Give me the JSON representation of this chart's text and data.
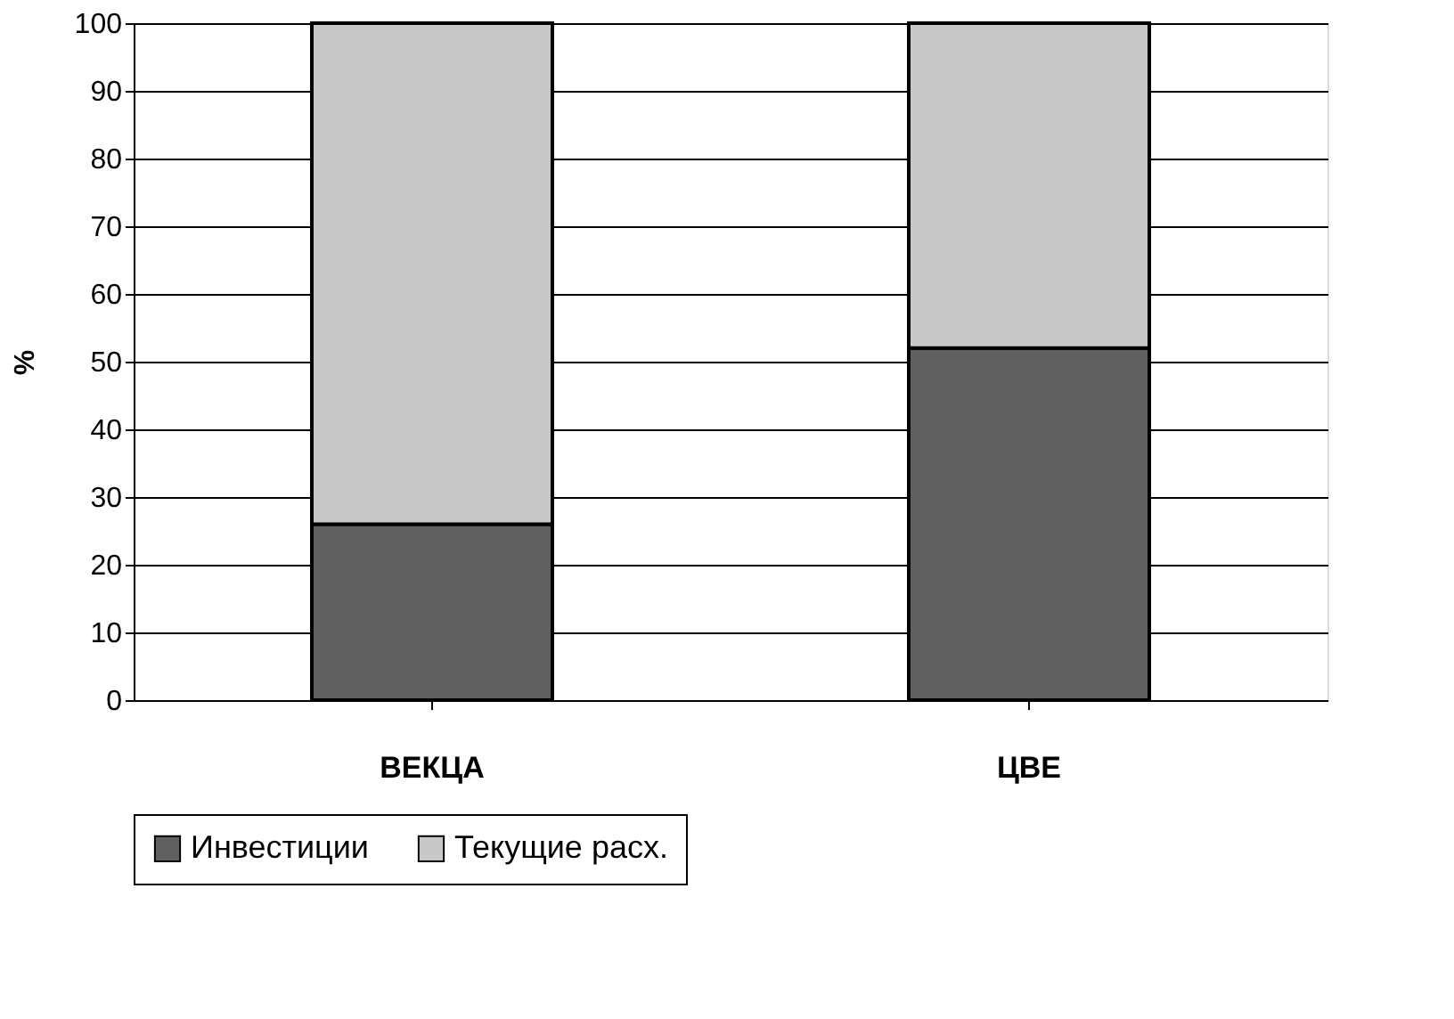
{
  "chart_data": {
    "type": "bar",
    "stacked": true,
    "ylabel": "%",
    "categories": [
      "ВЕКЦА",
      "ЦВЕ"
    ],
    "series": [
      {
        "name": "Инвестиции",
        "color": "#606060",
        "values": [
          26,
          52
        ]
      },
      {
        "name": "Текущие расх.",
        "color": "#c8c8c8",
        "values": [
          74,
          48
        ]
      }
    ],
    "ylim": [
      0,
      100
    ],
    "yticks": [
      0,
      10,
      20,
      30,
      40,
      50,
      60,
      70,
      80,
      90,
      100
    ],
    "grid": "y",
    "legend": "bottom"
  }
}
